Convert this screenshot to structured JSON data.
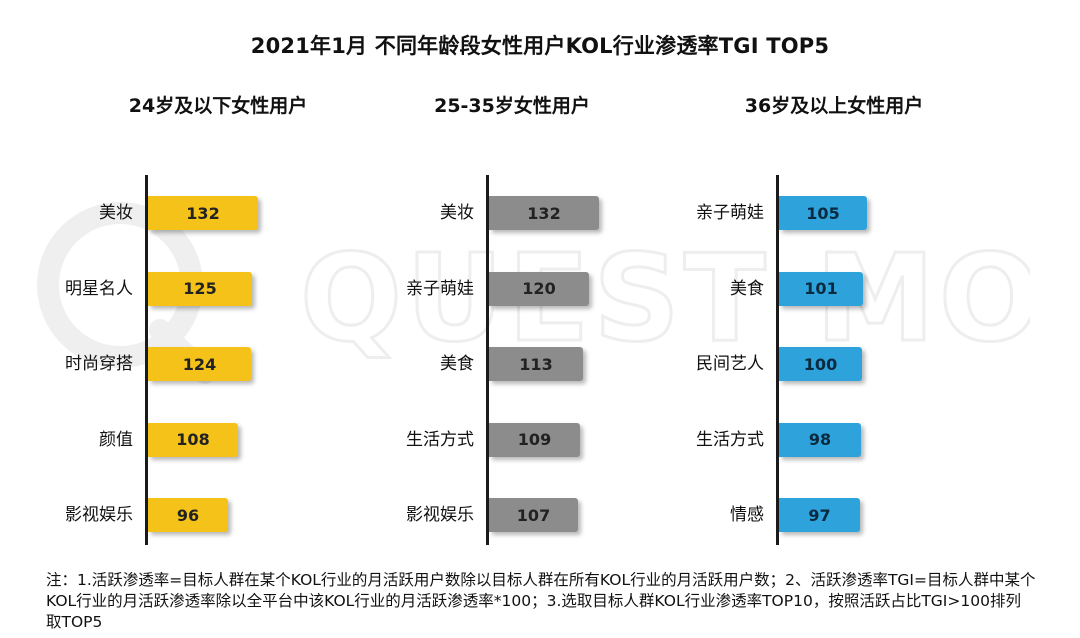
{
  "title": "2021年1月 不同年龄段女性用户KOL行业渗透率TGI TOP5",
  "watermark_text": "QUEST MOBILE",
  "note": "注：1.活跃渗透率=目标人群在某个KOL行业的月活跃用户数除以目标人群在所有KOL行业的月活跃用户数；2、活跃渗透率TGI=目标人群中某个KOL行业的月活跃渗透率除以全平台中该KOL行业的月活跃渗透率*100；3.选取目标人群KOL行业渗透率TOP10，按照活跃占比TGI>100排列取TOP5",
  "chart_data": [
    {
      "type": "bar",
      "orientation": "horizontal",
      "title": "24岁及以下女性用户",
      "categories": [
        "美妆",
        "明星名人",
        "时尚穿搭",
        "颜值",
        "影视娱乐"
      ],
      "values": [
        132,
        125,
        124,
        108,
        96
      ],
      "color": "#F5C219",
      "label_color": "#222222",
      "xlim": [
        0,
        140
      ]
    },
    {
      "type": "bar",
      "orientation": "horizontal",
      "title": "25-35岁女性用户",
      "categories": [
        "美妆",
        "亲子萌娃",
        "美食",
        "生活方式",
        "影视娱乐"
      ],
      "values": [
        132,
        120,
        113,
        109,
        107
      ],
      "color": "#8C8C8C",
      "label_color": "#222222",
      "xlim": [
        0,
        140
      ]
    },
    {
      "type": "bar",
      "orientation": "horizontal",
      "title": "36岁及以上女性用户",
      "categories": [
        "亲子萌娃",
        "美食",
        "民间艺人",
        "生活方式",
        "情感"
      ],
      "values": [
        105,
        101,
        100,
        98,
        97
      ],
      "color": "#2EA3DB",
      "label_color": "#0b2a40",
      "xlim": [
        0,
        140
      ]
    }
  ]
}
